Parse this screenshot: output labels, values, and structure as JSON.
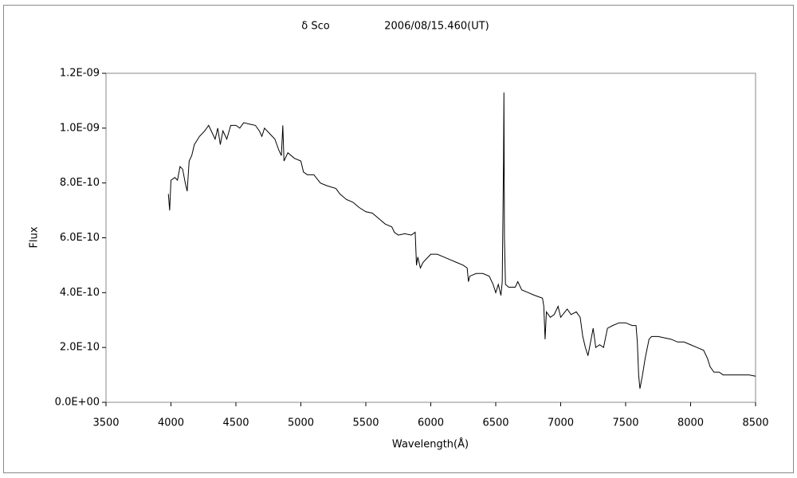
{
  "chart_data": {
    "type": "line",
    "title": "δ Sco",
    "date": "2006/08/15.460(UT)",
    "x_label": "Wavelength(Å)",
    "y_label": "Flux",
    "color": "#000000",
    "xlim": [
      3500,
      8500
    ],
    "xticks": [
      3500,
      4000,
      4500,
      5000,
      5500,
      6000,
      6500,
      7000,
      7500,
      8000,
      8500
    ],
    "ylim": [
      0,
      1.2e-09
    ],
    "yticks": [
      {
        "value": 0,
        "label": "0.0E+00"
      },
      {
        "value": 2e-10,
        "label": "2.0E-10"
      },
      {
        "value": 4e-10,
        "label": "4.0E-10"
      },
      {
        "value": 6e-10,
        "label": "6.0E-10"
      },
      {
        "value": 8e-10,
        "label": "8.0E-10"
      },
      {
        "value": 1e-09,
        "label": "1.0E-09"
      },
      {
        "value": 1.2e-09,
        "label": "1.2E-09"
      }
    ],
    "x": [
      3980,
      3990,
      4000,
      4030,
      4050,
      4070,
      4090,
      4110,
      4125,
      4140,
      4160,
      4180,
      4220,
      4260,
      4290,
      4310,
      4340,
      4360,
      4380,
      4400,
      4430,
      4460,
      4500,
      4530,
      4560,
      4600,
      4650,
      4680,
      4700,
      4720,
      4760,
      4800,
      4830,
      4850,
      4861,
      4870,
      4900,
      4950,
      5000,
      5020,
      5050,
      5100,
      5150,
      5200,
      5270,
      5300,
      5350,
      5400,
      5450,
      5500,
      5550,
      5600,
      5650,
      5700,
      5720,
      5750,
      5800,
      5850,
      5880,
      5890,
      5900,
      5920,
      5940,
      5960,
      6000,
      6050,
      6100,
      6150,
      6200,
      6250,
      6280,
      6290,
      6300,
      6350,
      6400,
      6450,
      6480,
      6500,
      6520,
      6540,
      6550,
      6560,
      6563,
      6567,
      6575,
      6600,
      6650,
      6670,
      6700,
      6750,
      6800,
      6860,
      6870,
      6880,
      6890,
      6920,
      6950,
      6980,
      7000,
      7050,
      7080,
      7120,
      7150,
      7170,
      7190,
      7210,
      7230,
      7250,
      7270,
      7300,
      7330,
      7360,
      7400,
      7450,
      7500,
      7550,
      7580,
      7590,
      7600,
      7610,
      7630,
      7650,
      7680,
      7700,
      7750,
      7800,
      7850,
      7900,
      7950,
      8000,
      8050,
      8100,
      8130,
      8150,
      8180,
      8220,
      8250,
      8300,
      8400,
      8450,
      8500
    ],
    "values": [
      7.6e-10,
      7e-10,
      8.1e-10,
      8.2e-10,
      8.1e-10,
      8.6e-10,
      8.5e-10,
      8e-10,
      7.7e-10,
      8.8e-10,
      9e-10,
      9.4e-10,
      9.7e-10,
      9.9e-10,
      1.01e-09,
      9.9e-10,
      9.6e-10,
      1e-09,
      9.4e-10,
      9.9e-10,
      9.6e-10,
      1.01e-09,
      1.01e-09,
      1e-09,
      1.02e-09,
      1.015e-09,
      1.01e-09,
      9.9e-10,
      9.7e-10,
      1e-09,
      9.8e-10,
      9.6e-10,
      9.2e-10,
      9e-10,
      1.01e-09,
      8.8e-10,
      9.1e-10,
      8.9e-10,
      8.8e-10,
      8.4e-10,
      8.3e-10,
      8.3e-10,
      8e-10,
      7.9e-10,
      7.8e-10,
      7.6e-10,
      7.4e-10,
      7.3e-10,
      7.1e-10,
      6.95e-10,
      6.9e-10,
      6.7e-10,
      6.5e-10,
      6.4e-10,
      6.2e-10,
      6.1e-10,
      6.15e-10,
      6.1e-10,
      6.2e-10,
      5e-10,
      5.3e-10,
      4.9e-10,
      5.1e-10,
      5.2e-10,
      5.4e-10,
      5.4e-10,
      5.3e-10,
      5.2e-10,
      5.1e-10,
      5e-10,
      4.9e-10,
      4.4e-10,
      4.6e-10,
      4.7e-10,
      4.7e-10,
      4.6e-10,
      4.3e-10,
      4e-10,
      4.3e-10,
      3.9e-10,
      4.4e-10,
      8.8e-10,
      1.13e-09,
      6e-10,
      4.3e-10,
      4.2e-10,
      4.2e-10,
      4.4e-10,
      4.1e-10,
      4e-10,
      3.9e-10,
      3.8e-10,
      3.5e-10,
      2.3e-10,
      3.3e-10,
      3.1e-10,
      3.2e-10,
      3.5e-10,
      3.1e-10,
      3.4e-10,
      3.2e-10,
      3.3e-10,
      3.1e-10,
      2.4e-10,
      2e-10,
      1.7e-10,
      2.2e-10,
      2.7e-10,
      2e-10,
      2.1e-10,
      2e-10,
      2.7e-10,
      2.8e-10,
      2.9e-10,
      2.9e-10,
      2.8e-10,
      2.8e-10,
      2.2e-10,
      1e-10,
      5e-11,
      1e-10,
      1.6e-10,
      2.3e-10,
      2.4e-10,
      2.4e-10,
      2.35e-10,
      2.3e-10,
      2.2e-10,
      2.2e-10,
      2.1e-10,
      2e-10,
      1.9e-10,
      1.6e-10,
      1.3e-10,
      1.1e-10,
      1.1e-10,
      1e-10,
      1e-10,
      1e-10,
      1e-10,
      9.5e-11
    ]
  }
}
